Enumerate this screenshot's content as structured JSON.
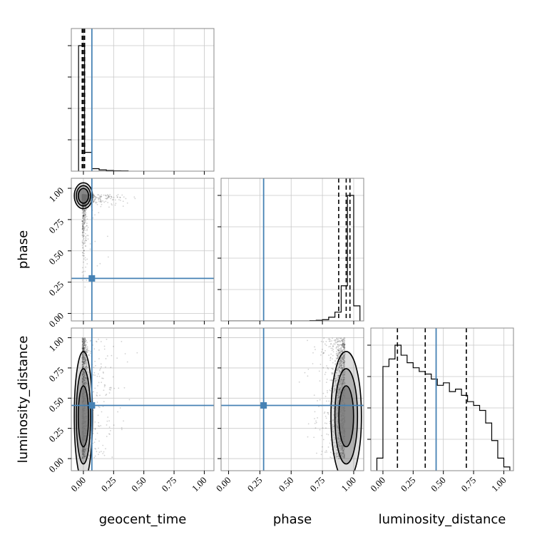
{
  "chart_data": {
    "type": "corner",
    "parameters": [
      "geocent_time",
      "phase",
      "luminosity_distance"
    ],
    "axis_labels": {
      "x": [
        "geocent_time",
        "phase",
        "luminosity_distance"
      ],
      "y": [
        "phase",
        "luminosity_distance"
      ]
    },
    "ticks": {
      "geocent_time": [
        0.0,
        0.25,
        0.5,
        0.75,
        1.0
      ],
      "phase": [
        0.0,
        0.25,
        0.5,
        0.75,
        1.0
      ],
      "luminosity_distance": [
        0.0,
        0.25,
        0.5,
        0.75,
        1.0
      ]
    },
    "tick_labels": [
      "0.00",
      "0.25",
      "0.50",
      "0.75",
      "1.00"
    ],
    "ranges": {
      "geocent_time": [
        -0.1,
        1.08
      ],
      "phase": [
        -0.06,
        1.08
      ],
      "luminosity_distance": [
        -0.1,
        1.08
      ]
    },
    "truths": {
      "geocent_time": 0.07,
      "phase": 0.28,
      "luminosity_distance": 0.44
    },
    "quantiles": {
      "geocent_time": [
        -0.01,
        0.0,
        0.01
      ],
      "phase": [
        0.88,
        0.94,
        0.97
      ],
      "luminosity_distance": [
        0.12,
        0.35,
        0.69
      ]
    },
    "histograms": {
      "geocent_time": {
        "edges": [
          -0.04,
          0.01,
          0.07,
          0.13,
          0.19,
          0.25,
          0.31,
          0.37
        ],
        "counts": [
          1.0,
          0.15,
          0.02,
          0.01,
          0.005,
          0.003,
          0.002
        ]
      },
      "phase": {
        "edges": [
          0.0,
          0.05,
          0.1,
          0.15,
          0.2,
          0.25,
          0.3,
          0.35,
          0.4,
          0.45,
          0.5,
          0.55,
          0.6,
          0.65,
          0.7,
          0.75,
          0.8,
          0.85,
          0.9,
          0.95,
          1.0,
          1.05
        ],
        "counts": [
          0,
          0,
          0,
          0,
          0,
          0,
          0,
          0,
          0,
          0,
          0,
          0,
          0,
          0.002,
          0.005,
          0.01,
          0.03,
          0.07,
          0.28,
          1.0,
          0.12
        ]
      },
      "luminosity_distance": {
        "edges": [
          -0.05,
          0.0,
          0.05,
          0.1,
          0.15,
          0.2,
          0.25,
          0.3,
          0.35,
          0.4,
          0.45,
          0.5,
          0.55,
          0.6,
          0.65,
          0.7,
          0.75,
          0.8,
          0.85,
          0.9,
          0.95,
          1.0,
          1.05
        ],
        "counts": [
          0.1,
          0.83,
          0.89,
          1.0,
          0.92,
          0.86,
          0.82,
          0.79,
          0.77,
          0.73,
          0.68,
          0.7,
          0.63,
          0.65,
          0.6,
          0.55,
          0.52,
          0.48,
          0.38,
          0.24,
          0.1,
          0.03
        ]
      }
    },
    "colors": {
      "truth": "#4682b4",
      "histogram": "#000000",
      "density_fill": "#7a7a7a",
      "grid": "#c8c8c8"
    },
    "grid": true
  }
}
